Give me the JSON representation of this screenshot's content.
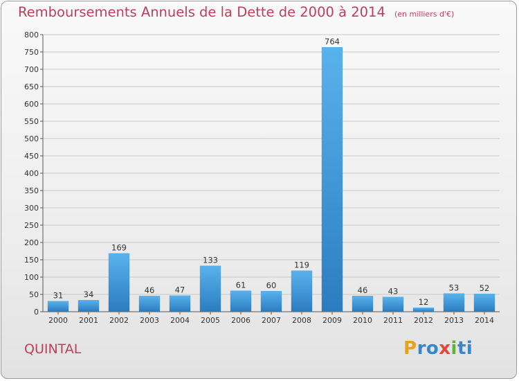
{
  "header": {
    "title": "Remboursements Annuels de la Dette de 2000 à 2014",
    "subtitle": "(en milliers d'€)"
  },
  "footer": {
    "commune": "QUINTAL",
    "logo": "Proxiti"
  },
  "colors": {
    "title": "#bf3e5c",
    "bar_light": "#5ab2ec",
    "bar_dark": "#2b7cc0",
    "grid": "#c8c8c8"
  },
  "chart_data": {
    "type": "bar",
    "title": "Remboursements Annuels de la Dette de 2000 à 2014",
    "subtitle": "(en milliers d'€)",
    "xlabel": "",
    "ylabel": "",
    "categories": [
      "2000",
      "2001",
      "2002",
      "2003",
      "2004",
      "2005",
      "2006",
      "2007",
      "2008",
      "2009",
      "2010",
      "2011",
      "2012",
      "2013",
      "2014"
    ],
    "values": [
      31,
      34,
      169,
      46,
      47,
      133,
      61,
      60,
      119,
      764,
      46,
      43,
      12,
      53,
      52
    ],
    "ylim": [
      0,
      800
    ],
    "yticks": [
      0,
      50,
      100,
      150,
      200,
      250,
      300,
      350,
      400,
      450,
      500,
      550,
      600,
      650,
      700,
      750,
      800
    ],
    "grid": true,
    "data_labels": true
  }
}
